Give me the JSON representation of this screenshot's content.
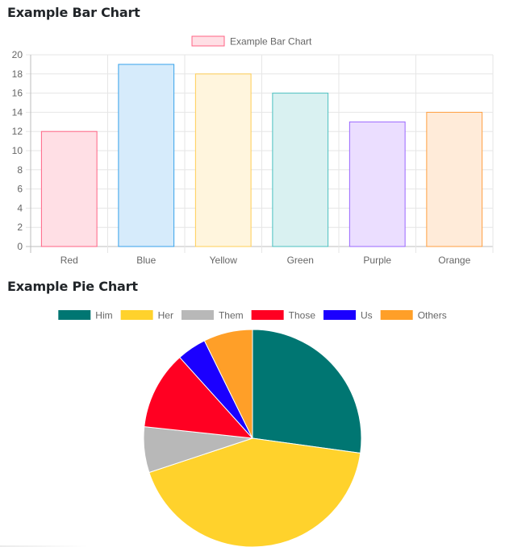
{
  "page": {
    "bar_heading": "Example Bar Chart",
    "pie_heading": "Example Pie Chart"
  },
  "chart_data": [
    {
      "type": "bar",
      "title": "",
      "legend": {
        "entries": [
          "Example Bar Chart"
        ],
        "placement": "top-center"
      },
      "categories": [
        "Red",
        "Blue",
        "Yellow",
        "Green",
        "Purple",
        "Orange"
      ],
      "series": [
        {
          "name": "Example Bar Chart",
          "values": [
            12,
            19,
            18,
            16,
            13,
            14
          ]
        }
      ],
      "ylim": [
        0,
        20
      ],
      "yticks": [
        0,
        2,
        4,
        6,
        8,
        10,
        12,
        14,
        16,
        18,
        20
      ],
      "grid": true,
      "colors": {
        "fill": [
          "#ffdfe5",
          "#d6ebfb",
          "#fff5dd",
          "#d9f1f1",
          "#ebdeff",
          "#ffebd9"
        ],
        "border": [
          "#ff6384",
          "#36a2eb",
          "#ffce56",
          "#4bc0c0",
          "#9966ff",
          "#ff9f40"
        ]
      }
    },
    {
      "type": "pie",
      "title": "",
      "legend": {
        "placement": "top-center"
      },
      "labels": [
        "Him",
        "Her",
        "Them",
        "Those",
        "Us",
        "Others"
      ],
      "values": [
        28,
        44,
        7,
        12,
        4.5,
        7.5
      ],
      "colors": [
        "#007672",
        "#ffd22c",
        "#b8b8b8",
        "#ff0022",
        "#1b00ff",
        "#ff9f28"
      ]
    }
  ]
}
